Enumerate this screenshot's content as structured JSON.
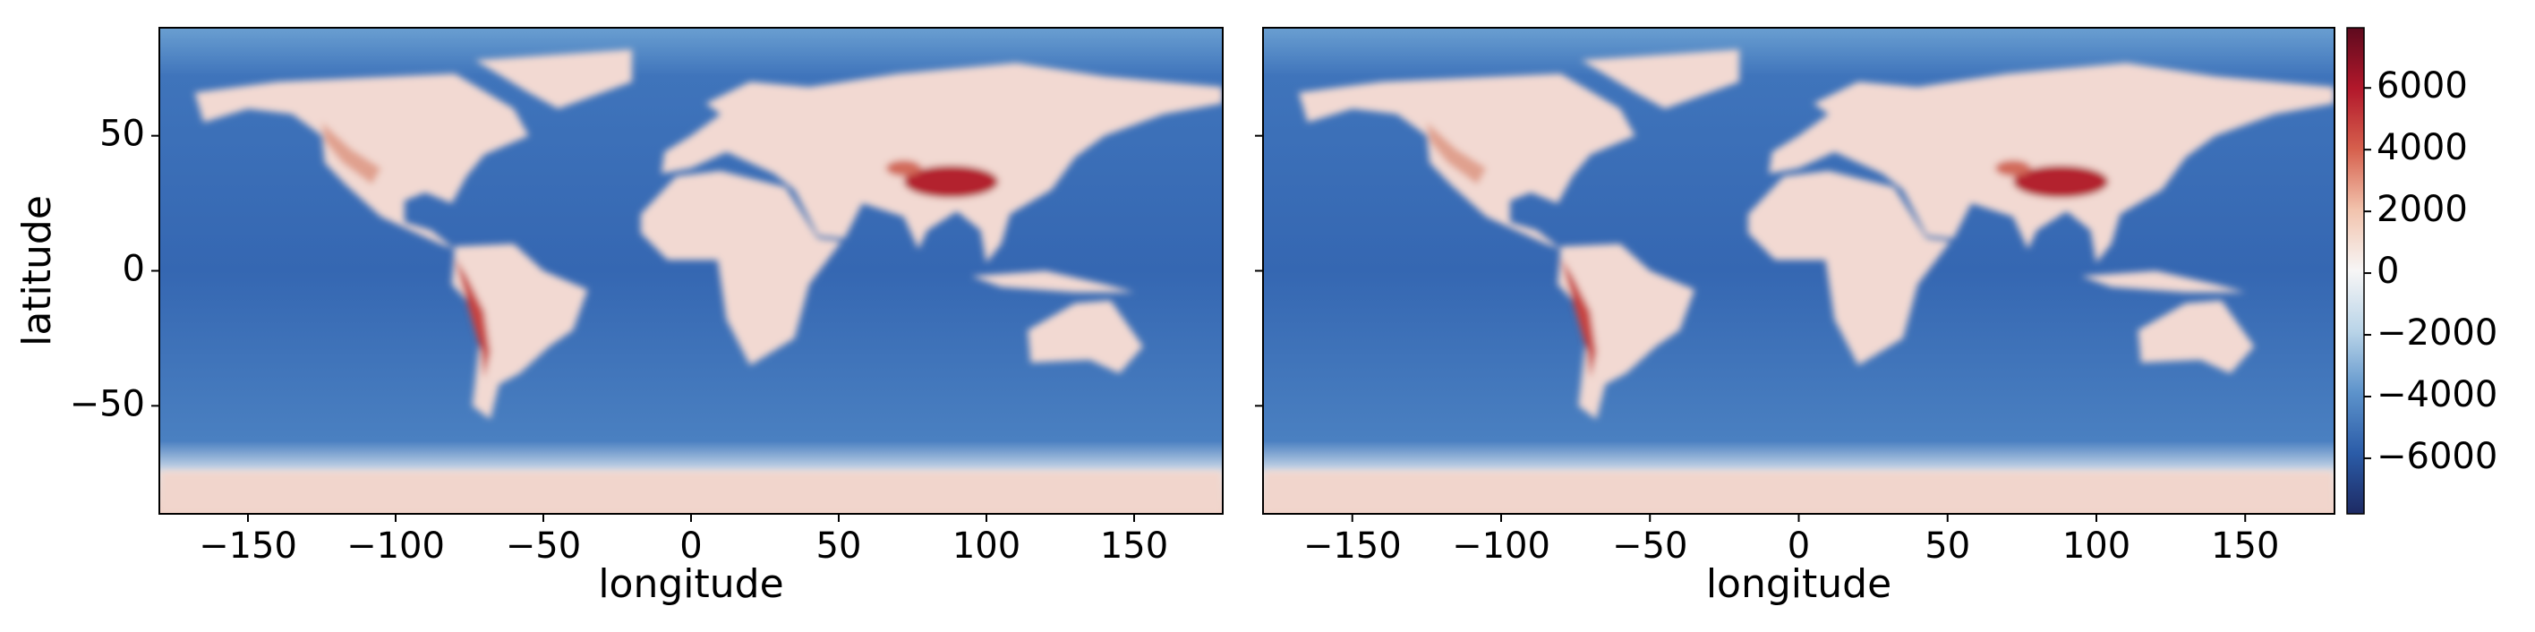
{
  "chart_data": [
    {
      "type": "heatmap",
      "xlabel": "longitude",
      "ylabel": "latitude",
      "xlim": [
        -180,
        180
      ],
      "ylim": [
        -90,
        90
      ],
      "xticks": [
        {
          "value": -150,
          "label": "−150"
        },
        {
          "value": -100,
          "label": "−100"
        },
        {
          "value": -50,
          "label": "−50"
        },
        0,
        50,
        100,
        150
      ],
      "yticks": [
        {
          "value": -50,
          "label": "−50"
        },
        0,
        50
      ]
    },
    {
      "type": "heatmap",
      "xlabel": "longitude",
      "xlim": [
        -180,
        180
      ],
      "ylim": [
        -90,
        90
      ],
      "xticks": [
        {
          "value": -150,
          "label": "−150"
        },
        {
          "value": -100,
          "label": "−100"
        },
        {
          "value": -50,
          "label": "−50"
        },
        0,
        50,
        100,
        150
      ],
      "yticks": [
        -50,
        0,
        50
      ],
      "show_ytick_labels": false,
      "colorbar": {
        "clim": [
          -7800,
          7950
        ],
        "ticks": [
          {
            "value": -6000,
            "label": "−6000"
          },
          {
            "value": -4000,
            "label": "−4000"
          },
          {
            "value": -2000,
            "label": "−2000"
          },
          0,
          2000,
          4000,
          6000
        ],
        "colormap": [
          "#1d2a63",
          "#2b5ca8",
          "#5d93cb",
          "#b9d4e8",
          "#f7f6f6",
          "#f2c3ad",
          "#d6604d",
          "#b2182b",
          "#5e0a1e"
        ]
      }
    }
  ]
}
